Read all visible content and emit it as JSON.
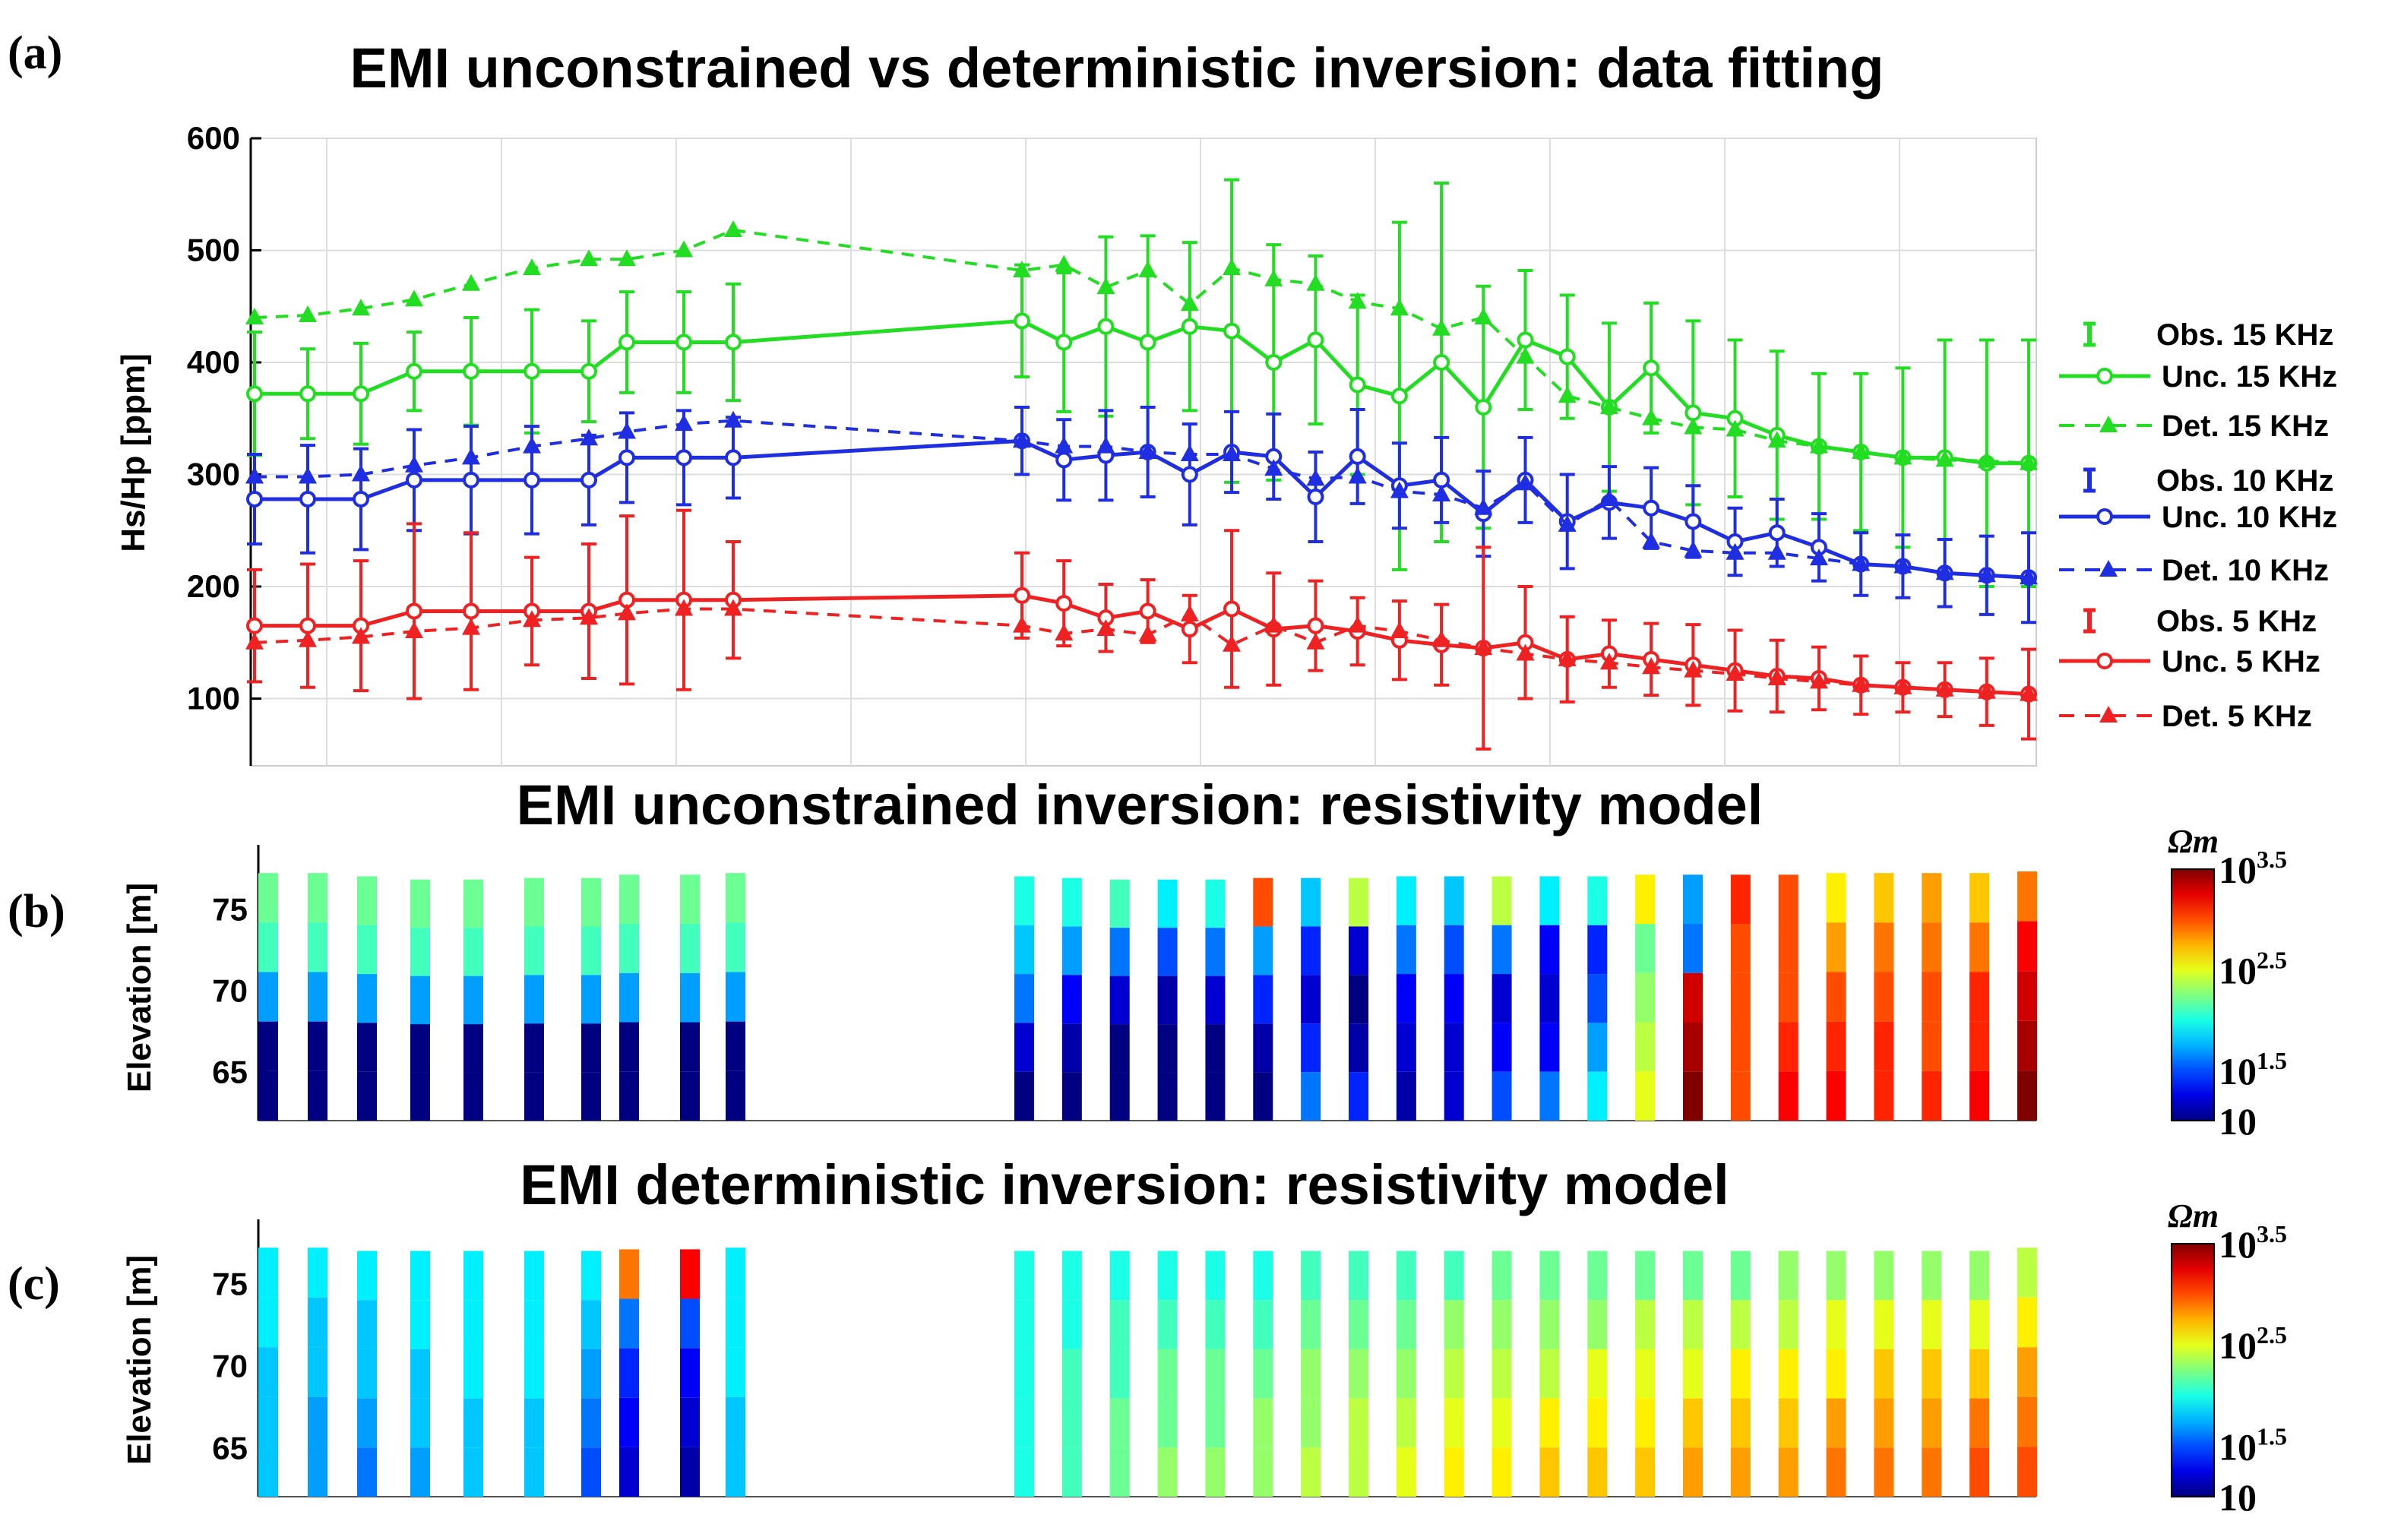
{
  "colors": {
    "green": "#22dd22",
    "blue": "#1f2ee0",
    "red": "#ee2222",
    "grid": "#dddddd",
    "colormap": "jet"
  },
  "chart_data": [
    {
      "panel": "(a)",
      "type": "line",
      "title": "EMI unconstrained vs deterministic inversion: data fitting",
      "ylabel": "Hs/Hp [ppm]",
      "ylim": [
        40,
        600
      ],
      "yticks": [
        100,
        200,
        300,
        400,
        500,
        600
      ],
      "grid": true,
      "legend_position": "right",
      "x": [
        1,
        2,
        3,
        4,
        5,
        6,
        7,
        8,
        9,
        10,
        11,
        12,
        13,
        14,
        15,
        16,
        17,
        18,
        19,
        20,
        21,
        22,
        23,
        24,
        25,
        26,
        27,
        28,
        29,
        30,
        31,
        32,
        33,
        34,
        35
      ],
      "series": [
        {
          "name": "Obs. 15 KHz",
          "kind": "errorbar",
          "color": "#22dd22",
          "values": [
            372,
            372,
            372,
            392,
            392,
            392,
            392,
            418,
            418,
            418,
            437,
            418,
            432,
            418,
            432,
            428,
            400,
            420,
            380,
            370,
            400,
            360,
            420,
            405,
            360,
            395,
            355,
            350,
            335,
            325,
            320,
            315,
            315,
            310,
            310
          ],
          "err": [
            55,
            40,
            45,
            35,
            48,
            55,
            45,
            45,
            45,
            52,
            50,
            62,
            80,
            95,
            75,
            135,
            105,
            75,
            80,
            155,
            160,
            108,
            62,
            55,
            75,
            58,
            82,
            70,
            75,
            65,
            70,
            80,
            105,
            110,
            110
          ]
        },
        {
          "name": "Unc. 15 KHz",
          "kind": "line",
          "color": "#22dd22",
          "values": [
            372,
            372,
            372,
            392,
            392,
            392,
            392,
            418,
            418,
            418,
            437,
            418,
            432,
            418,
            432,
            428,
            400,
            420,
            380,
            370,
            400,
            360,
            420,
            405,
            360,
            395,
            355,
            350,
            335,
            325,
            320,
            315,
            315,
            310,
            310
          ]
        },
        {
          "name": "Det. 15 KHz",
          "kind": "dashed",
          "color": "#22dd22",
          "values": [
            440,
            442,
            448,
            456,
            470,
            484,
            492,
            492,
            500,
            518,
            482,
            487,
            467,
            482,
            452,
            484,
            474,
            470,
            454,
            448,
            430,
            440,
            405,
            370,
            360,
            350,
            342,
            340,
            330,
            325,
            320,
            315,
            313,
            312,
            310
          ]
        },
        {
          "name": "Obs. 10 KHz",
          "kind": "errorbar",
          "color": "#1f2ee0",
          "values": [
            278,
            278,
            278,
            295,
            295,
            295,
            295,
            315,
            315,
            315,
            330,
            313,
            317,
            320,
            300,
            320,
            316,
            280,
            316,
            290,
            295,
            265,
            295,
            258,
            275,
            270,
            258,
            240,
            248,
            235,
            220,
            218,
            212,
            210,
            208
          ],
          "err": [
            40,
            48,
            45,
            45,
            48,
            48,
            40,
            40,
            42,
            36,
            30,
            36,
            40,
            40,
            45,
            36,
            38,
            40,
            42,
            38,
            38,
            38,
            38,
            42,
            32,
            36,
            32,
            30,
            30,
            30,
            28,
            28,
            30,
            35,
            40
          ]
        },
        {
          "name": "Unc. 10 KHz",
          "kind": "line",
          "color": "#1f2ee0",
          "values": [
            278,
            278,
            278,
            295,
            295,
            295,
            295,
            315,
            315,
            315,
            330,
            313,
            317,
            320,
            300,
            320,
            316,
            280,
            316,
            290,
            295,
            265,
            295,
            258,
            275,
            270,
            258,
            240,
            248,
            235,
            220,
            218,
            212,
            210,
            208
          ]
        },
        {
          "name": "Det. 10 KHz",
          "kind": "dashed",
          "color": "#1f2ee0",
          "values": [
            298,
            298,
            300,
            308,
            315,
            325,
            332,
            338,
            345,
            348,
            330,
            325,
            325,
            320,
            318,
            318,
            305,
            296,
            298,
            285,
            282,
            270,
            292,
            255,
            278,
            240,
            232,
            230,
            230,
            225,
            220,
            218,
            212,
            210,
            208
          ]
        },
        {
          "name": "Obs. 5 KHz",
          "kind": "errorbar",
          "color": "#ee2222",
          "values": [
            165,
            165,
            165,
            178,
            178,
            178,
            178,
            188,
            188,
            188,
            192,
            185,
            172,
            178,
            162,
            180,
            162,
            165,
            160,
            152,
            148,
            145,
            150,
            135,
            140,
            135,
            130,
            125,
            120,
            118,
            112,
            110,
            108,
            106,
            104
          ],
          "err": [
            50,
            55,
            58,
            78,
            70,
            48,
            60,
            75,
            80,
            52,
            38,
            38,
            30,
            28,
            30,
            70,
            50,
            40,
            30,
            35,
            36,
            90,
            50,
            38,
            30,
            32,
            36,
            36,
            32,
            28,
            26,
            22,
            24,
            30,
            40
          ]
        },
        {
          "name": "Unc. 5 KHz",
          "kind": "line",
          "color": "#ee2222",
          "values": [
            165,
            165,
            165,
            178,
            178,
            178,
            178,
            188,
            188,
            188,
            192,
            185,
            172,
            178,
            162,
            180,
            162,
            165,
            160,
            152,
            148,
            145,
            150,
            135,
            140,
            135,
            130,
            125,
            120,
            118,
            112,
            110,
            108,
            106,
            104
          ]
        },
        {
          "name": "Det. 5 KHz",
          "kind": "dashed",
          "color": "#ee2222",
          "values": [
            150,
            152,
            155,
            160,
            163,
            170,
            172,
            176,
            180,
            180,
            165,
            158,
            162,
            157,
            175,
            148,
            165,
            150,
            165,
            160,
            152,
            145,
            140,
            135,
            132,
            128,
            125,
            122,
            118,
            115,
            112,
            110,
            108,
            106,
            104
          ]
        }
      ]
    },
    {
      "panel": "(b)",
      "type": "heatmap",
      "title": "EMI unconstrained inversion: resistivity model",
      "ylabel": "Elevation [m]",
      "yticks": [
        65,
        70,
        75
      ],
      "ylim": [
        62,
        78
      ],
      "colorbar": {
        "unit": "Ωm",
        "scale": "log10",
        "range_log10": [
          1,
          3.5
        ],
        "ticks": [
          "10",
          "10",
          "10",
          "10"
        ],
        "tick_exponents": [
          "",
          "1.5",
          "2.5",
          "3.5"
        ]
      },
      "columns_top": [
        77.2,
        77.2,
        77.0,
        76.8,
        76.8,
        76.9,
        76.9,
        77.1,
        77.1,
        77.2,
        77.0,
        76.9,
        76.8,
        76.8,
        76.8,
        76.9,
        76.9,
        76.9,
        77.0,
        77.0,
        77.0,
        77.0,
        77.0,
        77.1,
        77.1,
        77.1,
        77.1,
        77.2,
        77.2,
        77.2,
        77.2,
        77.3
      ],
      "log10_resistivity": [
        [
          2.2,
          2.1,
          1.7,
          1.0,
          1.0
        ],
        [
          2.2,
          2.1,
          1.7,
          1.0,
          1.0
        ],
        [
          2.2,
          2.1,
          1.7,
          1.0,
          1.0
        ],
        [
          2.2,
          2.1,
          1.7,
          1.0,
          1.0
        ],
        [
          2.2,
          2.1,
          1.7,
          1.0,
          1.0
        ],
        [
          2.2,
          2.1,
          1.7,
          1.0,
          1.0
        ],
        [
          2.2,
          2.1,
          1.7,
          1.0,
          1.0
        ],
        [
          2.2,
          2.1,
          1.7,
          1.0,
          1.0
        ],
        [
          2.2,
          2.1,
          1.7,
          1.0,
          1.0
        ],
        [
          2.2,
          2.1,
          1.7,
          1.0,
          1.0
        ],
        [
          2.0,
          1.8,
          1.6,
          1.2,
          1.0
        ],
        [
          2.0,
          1.7,
          1.3,
          1.1,
          1.0
        ],
        [
          2.1,
          1.6,
          1.2,
          1.0,
          1.0
        ],
        [
          1.9,
          1.5,
          1.1,
          1.0,
          1.0
        ],
        [
          2.0,
          1.6,
          1.2,
          1.0,
          1.0
        ],
        [
          3.0,
          1.7,
          1.4,
          1.1,
          1.0
        ],
        [
          1.8,
          1.4,
          1.2,
          1.4,
          1.6
        ],
        [
          2.4,
          1.2,
          1.0,
          1.1,
          1.4
        ],
        [
          1.9,
          1.6,
          1.3,
          1.2,
          1.1
        ],
        [
          1.8,
          1.5,
          1.3,
          1.2,
          1.2
        ],
        [
          2.4,
          1.6,
          1.2,
          1.3,
          1.5
        ],
        [
          1.9,
          1.3,
          1.2,
          1.3,
          1.6
        ],
        [
          2.0,
          1.4,
          1.5,
          1.7,
          1.9
        ],
        [
          2.6,
          2.2,
          2.3,
          2.4,
          2.5
        ],
        [
          1.7,
          1.6,
          3.3,
          3.4,
          3.5
        ],
        [
          3.1,
          3.0,
          3.0,
          3.0,
          3.0
        ],
        [
          3.0,
          3.0,
          3.0,
          3.1,
          3.2
        ],
        [
          2.6,
          2.8,
          3.0,
          3.1,
          3.2
        ],
        [
          2.7,
          2.9,
          3.0,
          3.1,
          3.1
        ],
        [
          2.8,
          2.9,
          3.0,
          3.0,
          3.1
        ],
        [
          2.7,
          2.9,
          3.1,
          3.1,
          3.2
        ],
        [
          2.9,
          3.2,
          3.3,
          3.4,
          3.5
        ]
      ]
    },
    {
      "panel": "(c)",
      "type": "heatmap",
      "title": "EMI deterministic inversion: resistivity model",
      "ylabel": "Elevation [m]",
      "yticks": [
        65,
        70,
        75
      ],
      "ylim": [
        62,
        78
      ],
      "colorbar": {
        "unit": "Ωm",
        "scale": "log10",
        "range_log10": [
          1,
          3.5
        ],
        "ticks": [
          "10",
          "10",
          "10",
          "10"
        ],
        "tick_exponents": [
          "",
          "1.5",
          "2.5",
          "3.5"
        ]
      },
      "columns_top": [
        77.2,
        77.2,
        77.0,
        77.0,
        77.0,
        77.0,
        77.0,
        77.1,
        77.1,
        77.2,
        77.0,
        77.0,
        77.0,
        77.0,
        77.0,
        77.0,
        77.0,
        77.0,
        77.0,
        77.0,
        77.0,
        77.0,
        77.0,
        77.0,
        77.0,
        77.0,
        77.0,
        77.0,
        77.0,
        77.0,
        77.0,
        77.2
      ],
      "log10_resistivity": [
        [
          1.9,
          1.9,
          1.8,
          1.8,
          1.8
        ],
        [
          1.9,
          1.8,
          1.8,
          1.7,
          1.7
        ],
        [
          1.9,
          1.8,
          1.8,
          1.7,
          1.6
        ],
        [
          1.9,
          1.9,
          1.8,
          1.8,
          1.7
        ],
        [
          1.9,
          1.9,
          1.9,
          1.8,
          1.8
        ],
        [
          1.9,
          1.9,
          1.9,
          1.8,
          1.8
        ],
        [
          1.9,
          1.8,
          1.7,
          1.6,
          1.5
        ],
        [
          2.9,
          1.6,
          1.4,
          1.3,
          1.2
        ],
        [
          3.2,
          1.5,
          1.3,
          1.2,
          1.1
        ],
        [
          1.9,
          1.9,
          1.9,
          1.8,
          1.8
        ],
        [
          2.0,
          2.0,
          2.0,
          2.0,
          2.0
        ],
        [
          2.0,
          2.0,
          2.1,
          2.1,
          2.1
        ],
        [
          2.0,
          2.1,
          2.1,
          2.2,
          2.2
        ],
        [
          2.0,
          2.1,
          2.2,
          2.2,
          2.3
        ],
        [
          2.0,
          2.1,
          2.2,
          2.2,
          2.3
        ],
        [
          2.0,
          2.1,
          2.2,
          2.3,
          2.3
        ],
        [
          2.1,
          2.2,
          2.3,
          2.3,
          2.4
        ],
        [
          2.1,
          2.2,
          2.3,
          2.4,
          2.4
        ],
        [
          2.1,
          2.2,
          2.3,
          2.4,
          2.5
        ],
        [
          2.1,
          2.3,
          2.4,
          2.5,
          2.6
        ],
        [
          2.2,
          2.3,
          2.4,
          2.5,
          2.6
        ],
        [
          2.2,
          2.3,
          2.4,
          2.6,
          2.7
        ],
        [
          2.2,
          2.3,
          2.5,
          2.6,
          2.7
        ],
        [
          2.2,
          2.4,
          2.5,
          2.6,
          2.7
        ],
        [
          2.2,
          2.4,
          2.5,
          2.7,
          2.8
        ],
        [
          2.2,
          2.4,
          2.6,
          2.7,
          2.8
        ],
        [
          2.3,
          2.4,
          2.6,
          2.7,
          2.8
        ],
        [
          2.3,
          2.5,
          2.6,
          2.8,
          2.9
        ],
        [
          2.3,
          2.5,
          2.7,
          2.8,
          2.9
        ],
        [
          2.3,
          2.5,
          2.7,
          2.8,
          2.9
        ],
        [
          2.3,
          2.5,
          2.7,
          2.9,
          3.0
        ],
        [
          2.4,
          2.6,
          2.8,
          2.9,
          3.0
        ]
      ]
    }
  ]
}
